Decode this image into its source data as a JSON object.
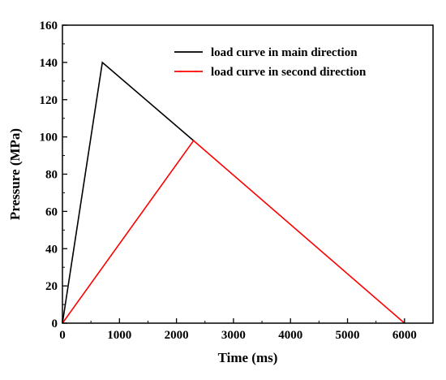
{
  "chart_data": {
    "type": "line",
    "xlabel": "Time (ms)",
    "ylabel": "Pressure (MPa)",
    "xlim": [
      0,
      6500
    ],
    "ylim": [
      0,
      160
    ],
    "xticks": [
      0,
      1000,
      2000,
      3000,
      4000,
      5000,
      6000
    ],
    "yticks": [
      0,
      20,
      40,
      60,
      80,
      100,
      120,
      140,
      160
    ],
    "legend_position": "top-right",
    "grid": false,
    "series": [
      {
        "name": "load curve in main direction",
        "color": "#000000",
        "x": [
          0,
          700,
          2300
        ],
        "y": [
          0,
          140,
          98
        ]
      },
      {
        "name": "load curve in second direction",
        "color": "#ff0000",
        "x": [
          0,
          2300,
          6000
        ],
        "y": [
          0,
          98,
          0
        ]
      }
    ]
  }
}
